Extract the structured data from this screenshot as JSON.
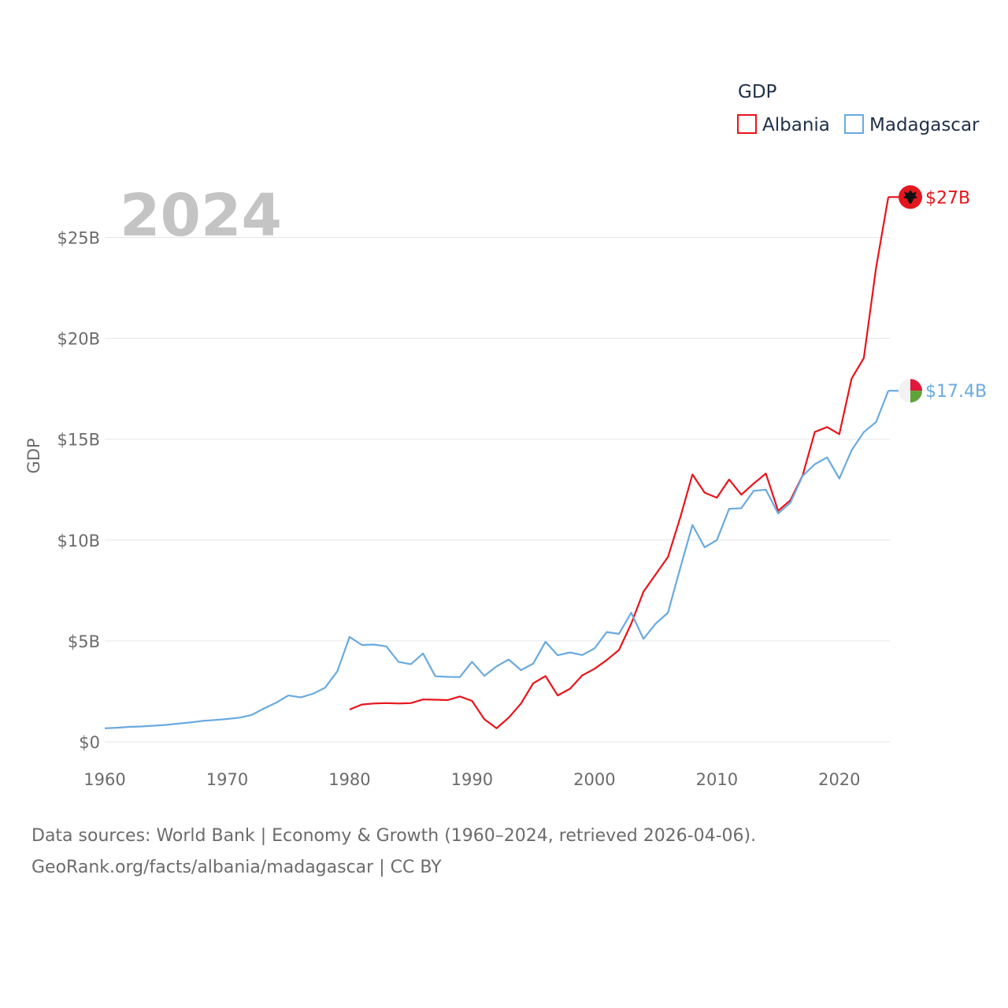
{
  "chart_data": {
    "type": "line",
    "title": "GDP",
    "year_label": "2024",
    "ylabel": "GDP",
    "xlabel": "",
    "xlim": [
      1960,
      2024
    ],
    "ylim": [
      0,
      27.5
    ],
    "x_ticks": [
      "1960",
      "1970",
      "1980",
      "1990",
      "2000",
      "2010",
      "2020"
    ],
    "y_ticks": [
      {
        "value": 0,
        "label": "$0"
      },
      {
        "value": 5,
        "label": "$5B"
      },
      {
        "value": 10,
        "label": "$10B"
      },
      {
        "value": 15,
        "label": "$15B"
      },
      {
        "value": 20,
        "label": "$20B"
      },
      {
        "value": 25,
        "label": "$25B"
      }
    ],
    "series": [
      {
        "name": "Albania",
        "color": "#e8141a",
        "end_label": "$27B",
        "flag": "albania-flag-icon",
        "x": [
          1980,
          1981,
          1982,
          1983,
          1984,
          1985,
          1986,
          1987,
          1988,
          1989,
          1990,
          1991,
          1992,
          1993,
          1994,
          1995,
          1996,
          1997,
          1998,
          1999,
          2000,
          2001,
          2002,
          2003,
          2004,
          2005,
          2006,
          2007,
          2008,
          2009,
          2010,
          2011,
          2012,
          2013,
          2014,
          2015,
          2016,
          2017,
          2018,
          2019,
          2020,
          2021,
          2022,
          2023,
          2024
        ],
        "values": [
          1.6,
          1.85,
          1.9,
          1.92,
          1.9,
          1.92,
          2.1,
          2.09,
          2.07,
          2.25,
          2.03,
          1.12,
          0.67,
          1.2,
          1.9,
          2.9,
          3.26,
          2.3,
          2.63,
          3.29,
          3.62,
          4.05,
          4.55,
          5.85,
          7.44,
          8.3,
          9.16,
          11.1,
          13.25,
          12.35,
          12.1,
          13.0,
          12.25,
          12.8,
          13.3,
          11.45,
          11.97,
          13.2,
          15.36,
          15.6,
          15.25,
          18.0,
          19.02,
          23.5,
          27.0
        ]
      },
      {
        "name": "Madagascar",
        "color": "#6aaadf",
        "end_label": "$17.4B",
        "flag": "madagascar-flag-icon",
        "x": [
          1960,
          1961,
          1962,
          1963,
          1964,
          1965,
          1966,
          1967,
          1968,
          1969,
          1970,
          1971,
          1972,
          1973,
          1974,
          1975,
          1976,
          1977,
          1978,
          1979,
          1980,
          1981,
          1982,
          1983,
          1984,
          1985,
          1986,
          1987,
          1988,
          1989,
          1990,
          1991,
          1992,
          1993,
          1994,
          1995,
          1996,
          1997,
          1998,
          1999,
          2000,
          2001,
          2002,
          2003,
          2004,
          2005,
          2006,
          2007,
          2008,
          2009,
          2010,
          2011,
          2012,
          2013,
          2014,
          2015,
          2016,
          2017,
          2018,
          2019,
          2020,
          2021,
          2022,
          2023,
          2024
        ],
        "values": [
          0.67,
          0.7,
          0.74,
          0.76,
          0.8,
          0.84,
          0.9,
          0.96,
          1.04,
          1.08,
          1.13,
          1.2,
          1.33,
          1.65,
          1.94,
          2.3,
          2.2,
          2.38,
          2.68,
          3.5,
          5.2,
          4.8,
          4.82,
          4.73,
          3.96,
          3.85,
          4.38,
          3.25,
          3.22,
          3.21,
          3.97,
          3.27,
          3.74,
          4.08,
          3.55,
          3.88,
          4.96,
          4.29,
          4.43,
          4.3,
          4.63,
          5.44,
          5.35,
          6.4,
          5.1,
          5.86,
          6.4,
          8.6,
          10.75,
          9.64,
          10.0,
          11.55,
          11.58,
          12.44,
          12.5,
          11.32,
          11.85,
          13.18,
          13.76,
          14.1,
          13.05,
          14.45,
          15.35,
          15.85,
          17.4
        ]
      }
    ]
  },
  "source": {
    "line1": "Data sources: World Bank | Economy & Growth (1960–2024, retrieved 2026-04-06).",
    "line2": "GeoRank.org/facts/albania/madagascar | CC BY"
  }
}
